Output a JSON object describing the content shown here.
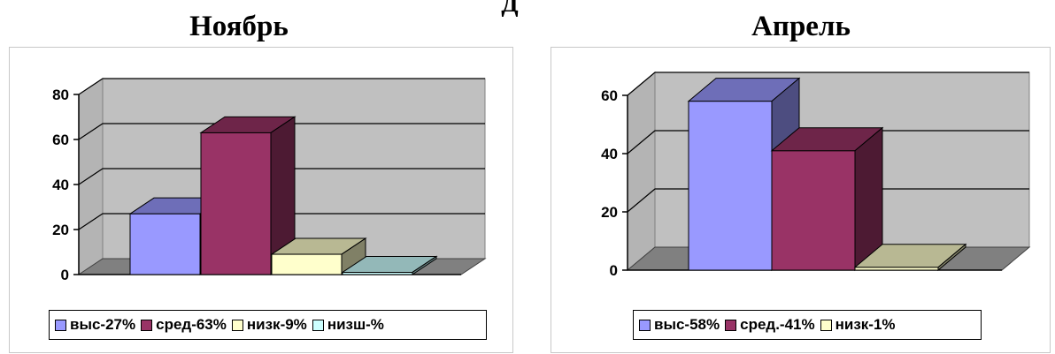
{
  "header": {
    "top_cut_text": "Д"
  },
  "chart_data": [
    {
      "type": "bar",
      "title": "Ноябрь",
      "categories": [
        "выс",
        "сред",
        "низк",
        "низш"
      ],
      "values": [
        27,
        63,
        9,
        1
      ],
      "ylim": [
        0,
        80
      ],
      "yticks": [
        "0",
        "20",
        "40",
        "60",
        "80"
      ],
      "grid": true,
      "legend_position": "bottom",
      "colors": [
        "#9999FF",
        "#993366",
        "#FFFFCC",
        "#CCFFFF"
      ],
      "legend": [
        "выс-27%",
        "сред-63%",
        "низк-9%",
        "низш-%"
      ]
    },
    {
      "type": "bar",
      "title": "Апрель",
      "categories": [
        "выс",
        "сред",
        "низк"
      ],
      "values": [
        58,
        41,
        1
      ],
      "ylim": [
        0,
        60
      ],
      "yticks": [
        "0",
        "20",
        "40",
        "60"
      ],
      "grid": true,
      "legend_position": "bottom",
      "colors": [
        "#9999FF",
        "#993366",
        "#FFFFCC"
      ],
      "legend": [
        "выс-58%",
        "сред.-41%",
        "низк-1%"
      ]
    }
  ]
}
